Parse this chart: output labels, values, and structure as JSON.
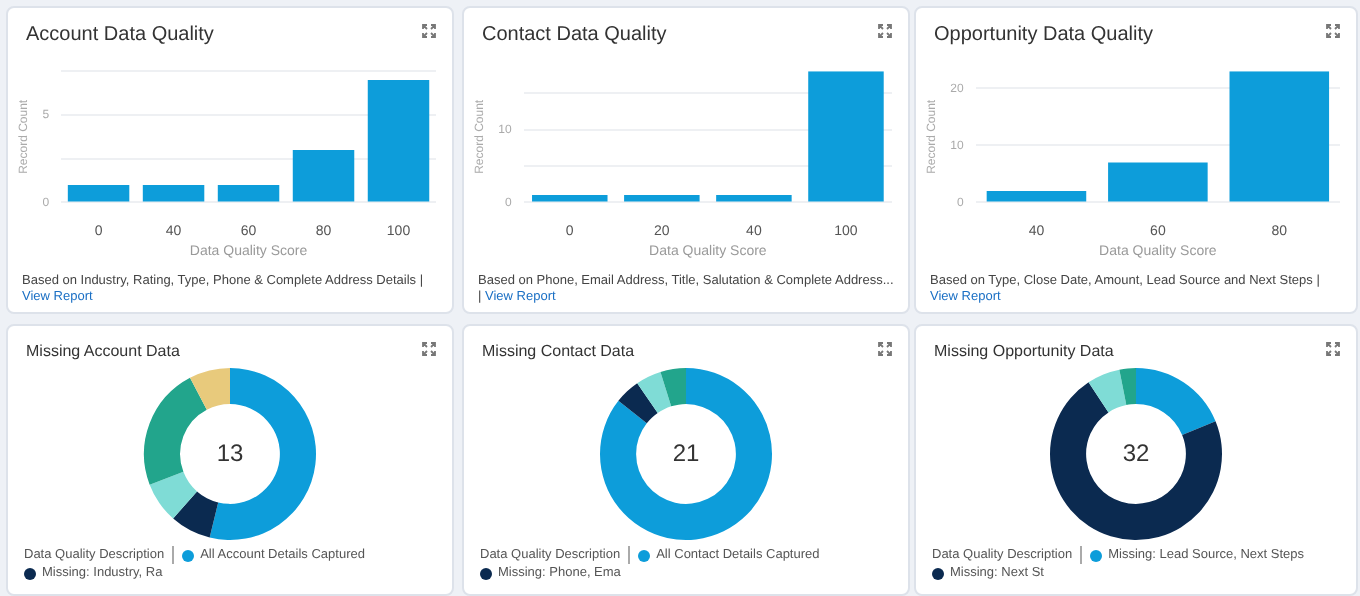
{
  "chart_data": [
    {
      "type": "bar",
      "title": "Account Data Quality",
      "xlabel": "Data Quality Score",
      "ylabel": "Record Count",
      "categories": [
        "0",
        "40",
        "60",
        "80",
        "100"
      ],
      "values": [
        1,
        1,
        1,
        3,
        7
      ],
      "color": "#0d9dda",
      "ylim": [
        0,
        7.5
      ],
      "yticks": [
        0,
        {
          "value": 2.5,
          "label": null
        },
        5,
        {
          "value": 7.5,
          "label": null
        }
      ],
      "grid": "y",
      "annotations": [
        "Based on Industry, Rating, Type, Phone & Complete Address Details |",
        "View Report"
      ]
    },
    {
      "type": "bar",
      "title": "Contact Data Quality",
      "xlabel": "Data Quality Score",
      "ylabel": "Record Count",
      "categories": [
        "0",
        "20",
        "40",
        "100"
      ],
      "values": [
        1,
        1,
        1,
        18
      ],
      "color": "#0d9dda",
      "ylim": [
        0,
        18
      ],
      "yticks": [
        0,
        {
          "value": 5,
          "label": null
        },
        10,
        {
          "value": 15,
          "label": null
        }
      ],
      "grid": "y",
      "annotations": [
        "Based on Phone, Email Address, Title, Salutation & Complete Address... |",
        "View Report"
      ]
    },
    {
      "type": "bar",
      "title": "Opportunity Data Quality",
      "xlabel": "Data Quality Score",
      "ylabel": "Record Count",
      "categories": [
        "40",
        "60",
        "80"
      ],
      "values": [
        2,
        7,
        23
      ],
      "color": "#0d9dda",
      "ylim": [
        0,
        23
      ],
      "yticks": [
        0,
        10,
        20
      ],
      "grid": "y",
      "annotations": [
        "Based on Type, Close Date, Amount, Lead Source and Next Steps |",
        "View Report"
      ]
    },
    {
      "type": "donut",
      "title": "Missing Account Data",
      "legend_title": "Data Quality Description",
      "legend": "bottom",
      "categories": [
        "All Account Details Captured",
        "Missing: Industry, Ra",
        null,
        null,
        null
      ],
      "values": [
        53.8,
        7.7,
        7.7,
        23.1,
        7.7
      ],
      "colors": [
        "#0d9dda",
        "#0b2a50",
        "#7fdcd6",
        "#22a58c",
        "#e8ca7c"
      ],
      "annotations": [
        "13"
      ]
    },
    {
      "type": "donut",
      "title": "Missing Contact Data",
      "legend_title": "Data Quality Description",
      "legend": "bottom",
      "categories": [
        "All Contact Details Captured",
        "Missing: Phone, Ema",
        null,
        null
      ],
      "values": [
        85.6,
        4.8,
        4.8,
        4.8
      ],
      "colors": [
        "#0d9dda",
        "#0b2a50",
        "#7fdcd6",
        "#22a58c"
      ],
      "annotations": [
        "21"
      ]
    },
    {
      "type": "donut",
      "title": "Missing Opportunity Data",
      "legend_title": "Data Quality Description",
      "legend": "bottom",
      "categories": [
        "Missing: Lead Source, Next Steps",
        "Missing: Next St",
        null,
        null
      ],
      "values": [
        18.8,
        71.9,
        6.2,
        3.1
      ],
      "colors": [
        "#0d9dda",
        "#0b2a50",
        "#7fdcd6",
        "#22a58c"
      ],
      "annotations": [
        "32"
      ]
    }
  ]
}
